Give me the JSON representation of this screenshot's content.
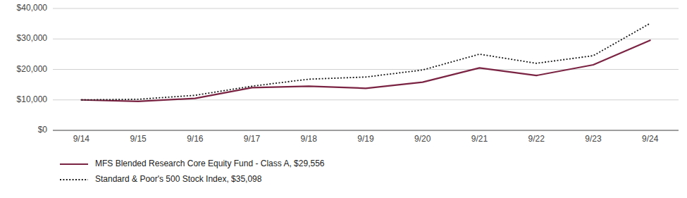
{
  "chart_data": {
    "type": "line",
    "categories": [
      "9/14",
      "9/15",
      "9/16",
      "9/17",
      "9/18",
      "9/19",
      "9/20",
      "9/21",
      "9/22",
      "9/23",
      "9/24"
    ],
    "series": [
      {
        "name": "MFS Blended Research Core Equity Fund - Class A, $29,556",
        "color": "#7B2342",
        "line_style": "solid",
        "values": [
          10000,
          9500,
          10500,
          14000,
          14500,
          13800,
          15800,
          20500,
          18000,
          21500,
          29556
        ]
      },
      {
        "name": "Standard & Poor's 500 Stock Index, $35,098",
        "color": "#1a1a1a",
        "line_style": "dotted",
        "values": [
          10000,
          10200,
          11500,
          14500,
          16800,
          17500,
          19800,
          25000,
          22000,
          24500,
          35098
        ]
      }
    ],
    "ylim": [
      0,
      40000
    ],
    "yticks": [
      {
        "value": 0,
        "label": "$0"
      },
      {
        "value": 10000,
        "label": "$10,000"
      },
      {
        "value": 20000,
        "label": "$20,000"
      },
      {
        "value": 30000,
        "label": "$30,000"
      },
      {
        "value": 40000,
        "label": "$40,000"
      }
    ],
    "grid": true,
    "legend": "bottom"
  }
}
